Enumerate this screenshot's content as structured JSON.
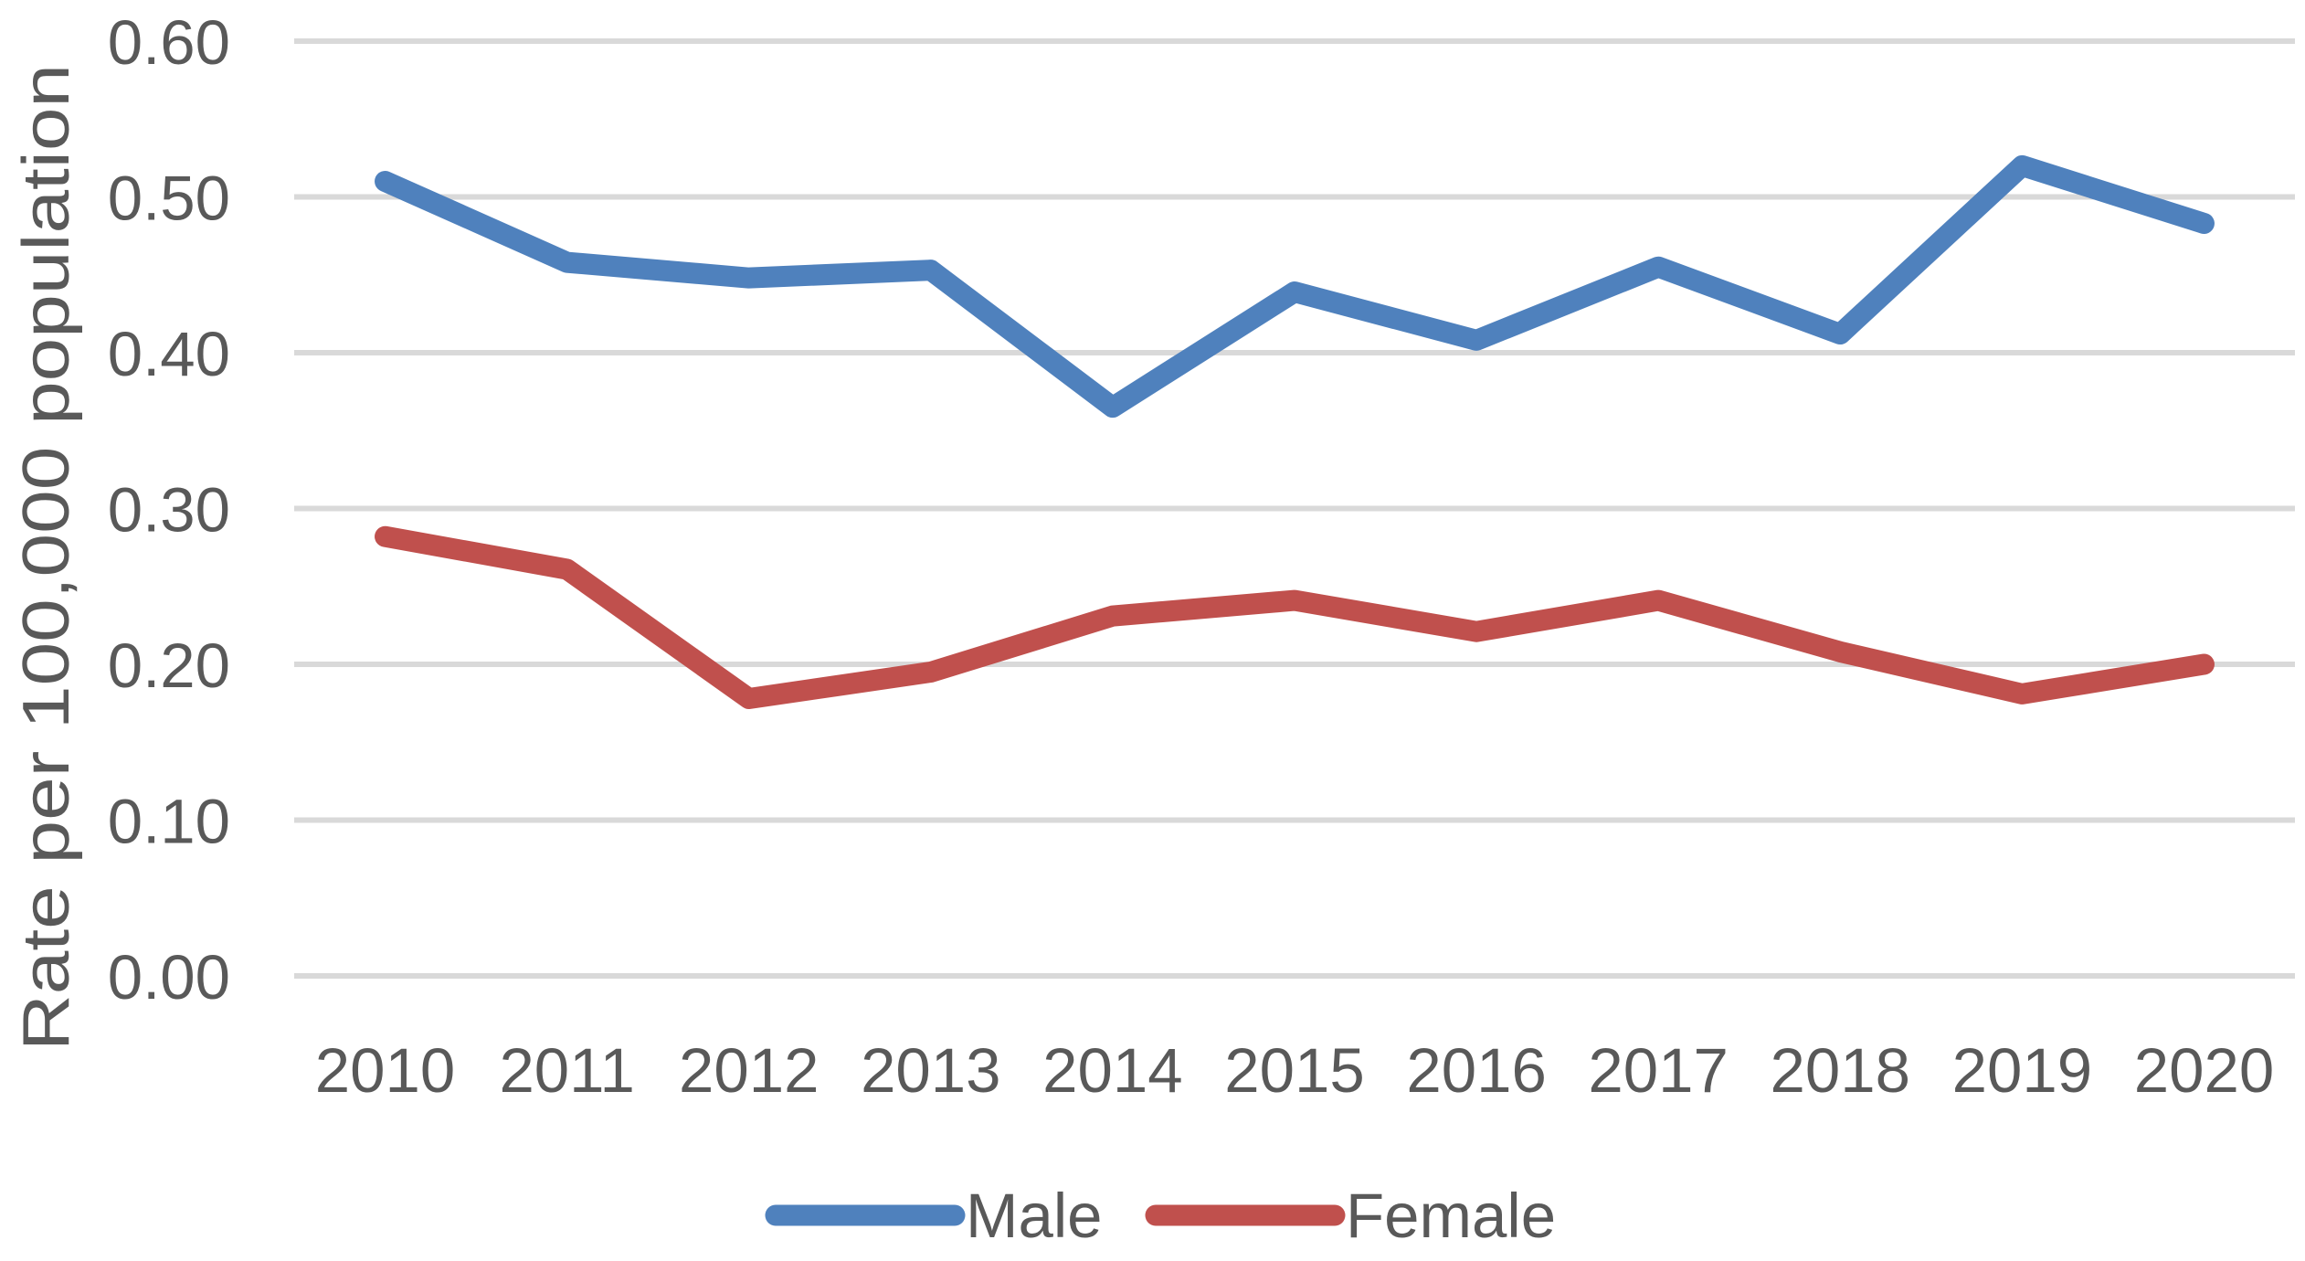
{
  "chart_data": {
    "type": "line",
    "title": "",
    "xlabel": "",
    "ylabel": "Rate per 100,000 population",
    "categories": [
      "2010",
      "2011",
      "2012",
      "2013",
      "2014",
      "2015",
      "2016",
      "2017",
      "2018",
      "2019",
      "2020"
    ],
    "series": [
      {
        "name": "Male",
        "color": "#4F81BD",
        "values": [
          0.51,
          0.458,
          0.448,
          0.453,
          0.365,
          0.439,
          0.408,
          0.455,
          0.412,
          0.52,
          0.483
        ]
      },
      {
        "name": "Female",
        "color": "#C0504D",
        "values": [
          0.282,
          0.261,
          0.178,
          0.195,
          0.231,
          0.241,
          0.221,
          0.241,
          0.208,
          0.181,
          0.2
        ]
      }
    ],
    "ylim": [
      0.0,
      0.6
    ],
    "ytick_values": [
      0.0,
      0.1,
      0.2,
      0.3,
      0.4,
      0.5,
      0.6
    ],
    "ytick_labels": [
      "0.00",
      "0.10",
      "0.20",
      "0.30",
      "0.40",
      "0.50",
      "0.60"
    ],
    "grid": true,
    "legend_position": "bottom-center",
    "colors": {
      "axis_text": "#595959",
      "gridline": "#D9D9D9",
      "background": "#FFFFFF"
    }
  }
}
